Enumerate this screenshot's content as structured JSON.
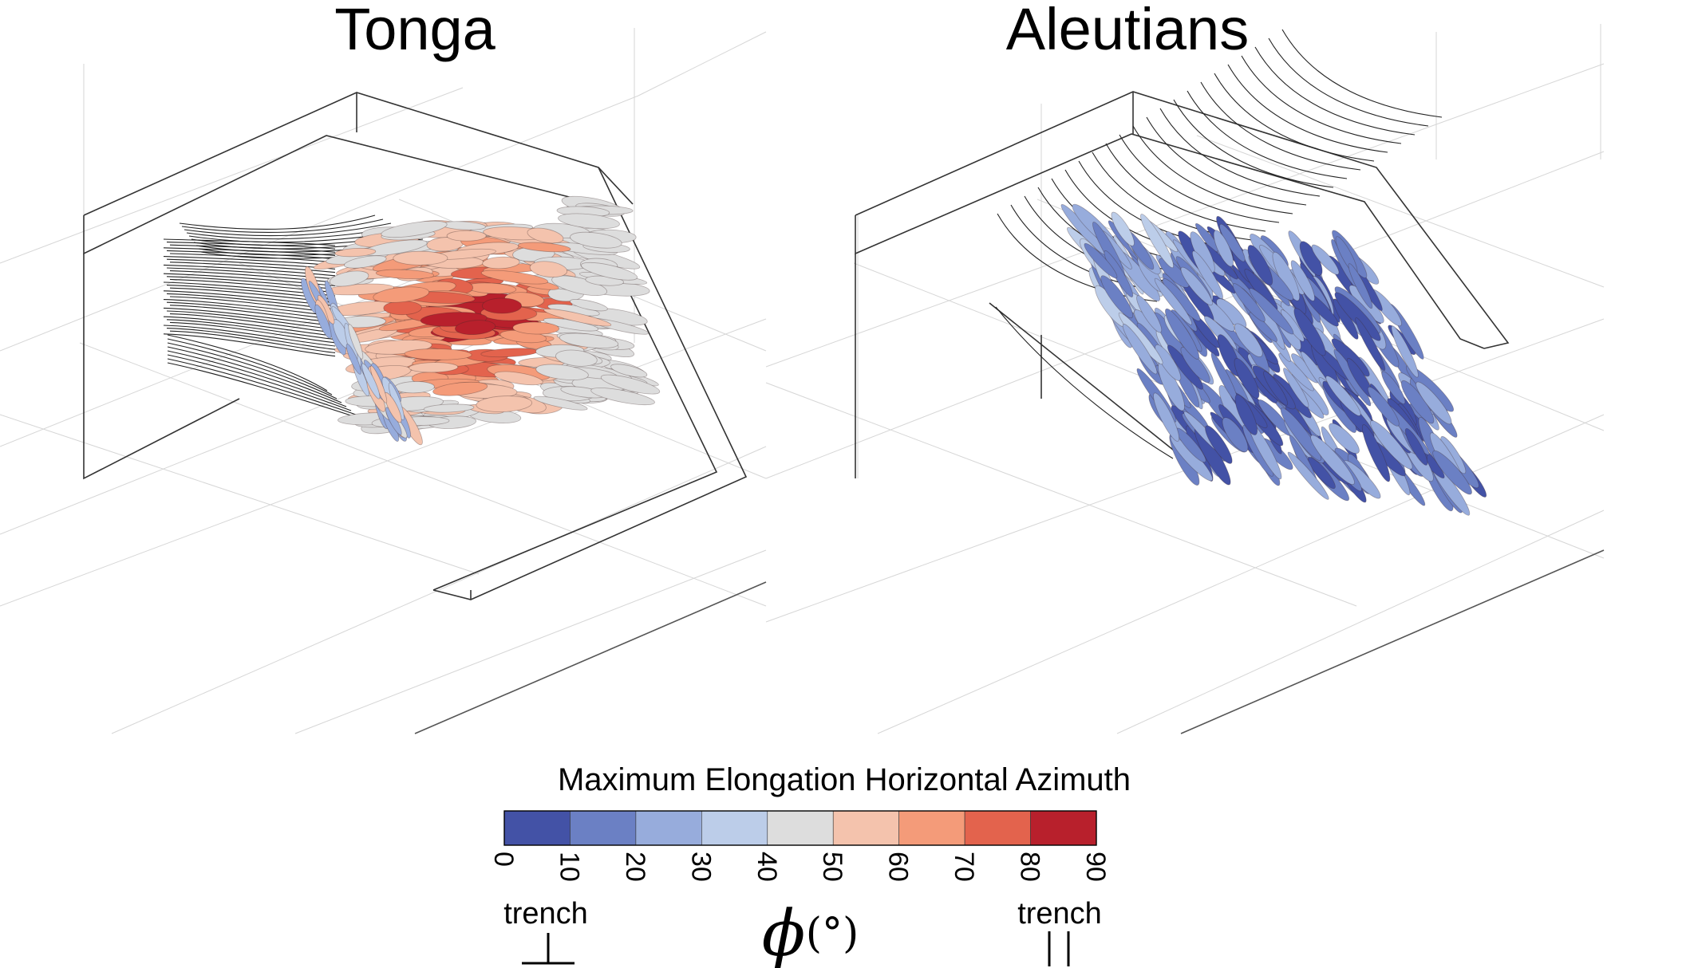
{
  "panels": [
    {
      "title": "Tonga",
      "palette": "warm"
    },
    {
      "title": "Aleutians",
      "palette": "cool"
    }
  ],
  "colorbar": {
    "title": "Maximum Elongation Horizontal Azimuth",
    "ticks": [
      "0",
      "10",
      "20",
      "30",
      "40",
      "50",
      "60",
      "70",
      "80",
      "90"
    ],
    "bins": [
      {
        "range": [
          0,
          10
        ],
        "color": "#4352a6"
      },
      {
        "range": [
          10,
          20
        ],
        "color": "#6b80c4"
      },
      {
        "range": [
          20,
          30
        ],
        "color": "#97acdc"
      },
      {
        "range": [
          30,
          40
        ],
        "color": "#bccde9"
      },
      {
        "range": [
          40,
          50
        ],
        "color": "#dddddd"
      },
      {
        "range": [
          50,
          60
        ],
        "color": "#f4c3ad"
      },
      {
        "range": [
          60,
          70
        ],
        "color": "#f49b79"
      },
      {
        "range": [
          70,
          80
        ],
        "color": "#e3634d"
      },
      {
        "range": [
          80,
          90
        ],
        "color": "#b8202c"
      }
    ],
    "left_label": "trench",
    "right_label": "trench",
    "symbol": "ϕ",
    "unit": "(°)"
  }
}
